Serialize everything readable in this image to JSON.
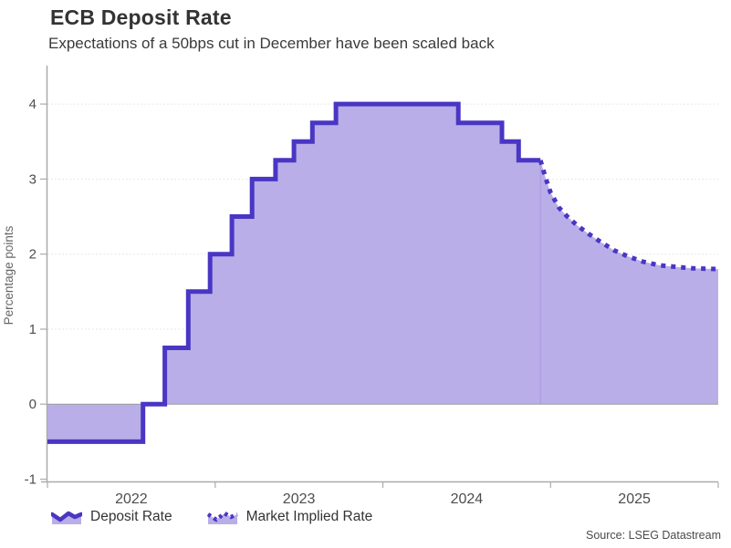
{
  "header": {
    "title": "ECB Deposit Rate",
    "subtitle": "Expectations of a 50bps cut in December have been scaled back"
  },
  "source": "Source: LSEG Datastream",
  "legend": [
    {
      "label": "Deposit Rate",
      "style": "solid"
    },
    {
      "label": "Market Implied Rate",
      "style": "dotted"
    }
  ],
  "colors": {
    "line": "#4936c4",
    "fill": "#b9aee7",
    "seam": "#a698dd",
    "grid": "#e0e0e0",
    "axis": "#ababab",
    "zero_line": "#9c9c9c",
    "tick_text": "#4d4d4d",
    "ylabel_text": "#666666"
  },
  "chart_data": {
    "type": "area",
    "title": "ECB Deposit Rate",
    "subtitle": "Expectations of a 50bps cut in December have been scaled back",
    "xlabel": "",
    "ylabel": "Percentage points",
    "x_domain": [
      2022.0,
      2026.0
    ],
    "y_domain": [
      -1.03,
      4.39
    ],
    "baseline": 0,
    "grid": "dotted-horizontal",
    "legend_position": "bottom-left",
    "x_ticks": [
      2022,
      2023,
      2024,
      2025,
      2026
    ],
    "x_tick_labels": [
      {
        "label": "2022",
        "x": 2022.5
      },
      {
        "label": "2023",
        "x": 2023.5
      },
      {
        "label": "2024",
        "x": 2024.5
      },
      {
        "label": "2025",
        "x": 2025.5
      }
    ],
    "y_ticks": [
      -1,
      0,
      1,
      2,
      3,
      4
    ],
    "series": [
      {
        "name": "Deposit Rate",
        "style": "step-solid",
        "points": [
          [
            2022.0,
            -0.5
          ],
          [
            2022.57,
            0.0
          ],
          [
            2022.7,
            0.75
          ],
          [
            2022.84,
            1.5
          ],
          [
            2022.97,
            2.0
          ],
          [
            2023.1,
            2.5
          ],
          [
            2023.22,
            3.0
          ],
          [
            2023.36,
            3.25
          ],
          [
            2023.47,
            3.5
          ],
          [
            2023.58,
            3.75
          ],
          [
            2023.72,
            4.0
          ],
          [
            2024.45,
            3.75
          ],
          [
            2024.71,
            3.5
          ],
          [
            2024.81,
            3.25
          ],
          [
            2024.94,
            3.25
          ]
        ]
      },
      {
        "name": "Market Implied Rate",
        "style": "dotted",
        "points": [
          [
            2024.94,
            3.25
          ],
          [
            2024.97,
            3.02
          ],
          [
            2025.0,
            2.82
          ],
          [
            2025.05,
            2.62
          ],
          [
            2025.1,
            2.5
          ],
          [
            2025.16,
            2.38
          ],
          [
            2025.22,
            2.28
          ],
          [
            2025.3,
            2.16
          ],
          [
            2025.38,
            2.05
          ],
          [
            2025.46,
            1.97
          ],
          [
            2025.55,
            1.9
          ],
          [
            2025.65,
            1.85
          ],
          [
            2025.75,
            1.83
          ],
          [
            2025.85,
            1.81
          ],
          [
            2026.0,
            1.8
          ]
        ]
      }
    ]
  }
}
